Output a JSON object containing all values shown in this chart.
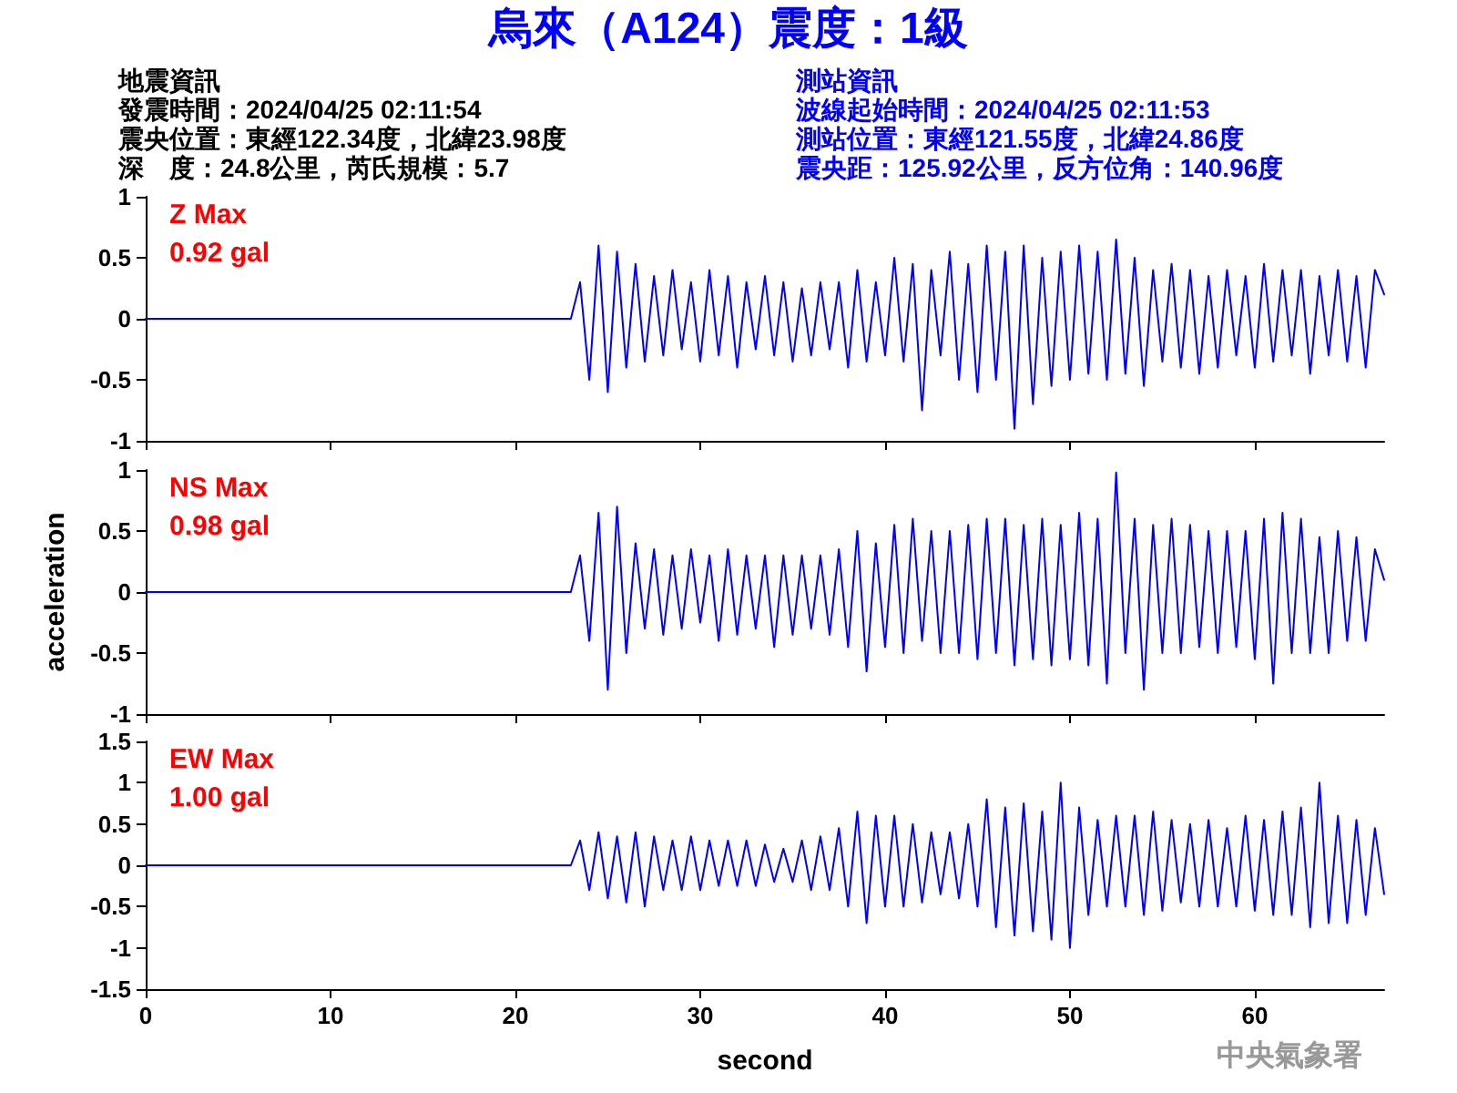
{
  "chart_data": [
    {
      "type": "line",
      "title": "烏來（A124）震度：1級",
      "annotations": [
        "地震資訊",
        "發震時間：2024/04/25 02:11:54",
        "震央位置：東經122.34度，北緯23.98度",
        "深　度：24.8公里，芮氏規模：5.7",
        "測站資訊",
        "波線起始時間：2024/04/25 02:11:53",
        "測站位置：東經121.55度，北緯24.86度",
        "震央距：125.92公里，反方位角：140.96度",
        "Z Max",
        "0.92 gal"
      ],
      "color": "#0000ff",
      "line_style": "solid",
      "marker": "none",
      "tick_labels": "y",
      "xlim": [
        0,
        67
      ],
      "xticks": [
        0,
        10,
        20,
        30,
        40,
        50,
        60
      ],
      "ylim": [
        -1,
        1
      ],
      "yticks": [
        -1,
        -0.5,
        0,
        0.5,
        1
      ],
      "x": [
        0,
        5,
        10,
        15,
        20,
        23,
        23.5,
        24,
        24.5,
        25,
        25.5,
        26,
        26.5,
        27,
        27.5,
        28,
        28.5,
        29,
        29.5,
        30,
        30.5,
        31,
        31.5,
        32,
        32.5,
        33,
        33.5,
        34,
        34.5,
        35,
        35.5,
        36,
        36.5,
        37,
        37.5,
        38,
        38.5,
        39,
        39.5,
        40,
        40.5,
        41,
        41.5,
        42,
        42.5,
        43,
        43.5,
        44,
        44.5,
        45,
        45.5,
        46,
        46.5,
        47,
        47.5,
        48,
        48.5,
        49,
        49.5,
        50,
        50.5,
        51,
        51.5,
        52,
        52.5,
        53,
        53.5,
        54,
        54.5,
        55,
        55.5,
        56,
        56.5,
        57,
        57.5,
        58,
        58.5,
        59,
        59.5,
        60,
        60.5,
        61,
        61.5,
        62,
        62.5,
        63,
        63.5,
        64,
        64.5,
        65,
        65.5,
        66,
        66.5,
        67
      ],
      "values": [
        0,
        0,
        0,
        0,
        0,
        0,
        0.3,
        -0.5,
        0.6,
        -0.6,
        0.55,
        -0.4,
        0.45,
        -0.35,
        0.35,
        -0.3,
        0.4,
        -0.25,
        0.3,
        -0.35,
        0.4,
        -0.3,
        0.35,
        -0.4,
        0.3,
        -0.25,
        0.35,
        -0.3,
        0.3,
        -0.35,
        0.25,
        -0.3,
        0.3,
        -0.25,
        0.3,
        -0.4,
        0.4,
        -0.35,
        0.3,
        -0.3,
        0.5,
        -0.35,
        0.45,
        -0.75,
        0.4,
        -0.3,
        0.55,
        -0.5,
        0.45,
        -0.6,
        0.6,
        -0.5,
        0.55,
        -0.9,
        0.6,
        -0.7,
        0.5,
        -0.55,
        0.55,
        -0.5,
        0.6,
        -0.45,
        0.55,
        -0.5,
        0.65,
        -0.45,
        0.5,
        -0.55,
        0.4,
        -0.35,
        0.45,
        -0.4,
        0.4,
        -0.45,
        0.35,
        -0.4,
        0.4,
        -0.3,
        0.35,
        -0.4,
        0.45,
        -0.35,
        0.4,
        -0.3,
        0.4,
        -0.45,
        0.35,
        -0.3,
        0.4,
        -0.35,
        0.35,
        -0.4,
        0.4,
        0.2
      ]
    },
    {
      "type": "line",
      "ylabel": "acceleration",
      "annotations": [
        "NS Max",
        "0.98 gal"
      ],
      "color": "#0000ff",
      "line_style": "solid",
      "marker": "none",
      "tick_labels": "y",
      "xlim": [
        0,
        67
      ],
      "xticks": [
        0,
        10,
        20,
        30,
        40,
        50,
        60
      ],
      "ylim": [
        -1,
        1
      ],
      "yticks": [
        -1,
        -0.5,
        0,
        0.5,
        1
      ],
      "x": [
        0,
        5,
        10,
        15,
        20,
        23,
        23.5,
        24,
        24.5,
        25,
        25.5,
        26,
        26.5,
        27,
        27.5,
        28,
        28.5,
        29,
        29.5,
        30,
        30.5,
        31,
        31.5,
        32,
        32.5,
        33,
        33.5,
        34,
        34.5,
        35,
        35.5,
        36,
        36.5,
        37,
        37.5,
        38,
        38.5,
        39,
        39.5,
        40,
        40.5,
        41,
        41.5,
        42,
        42.5,
        43,
        43.5,
        44,
        44.5,
        45,
        45.5,
        46,
        46.5,
        47,
        47.5,
        48,
        48.5,
        49,
        49.5,
        50,
        50.5,
        51,
        51.5,
        52,
        52.5,
        53,
        53.5,
        54,
        54.5,
        55,
        55.5,
        56,
        56.5,
        57,
        57.5,
        58,
        58.5,
        59,
        59.5,
        60,
        60.5,
        61,
        61.5,
        62,
        62.5,
        63,
        63.5,
        64,
        64.5,
        65,
        65.5,
        66,
        66.5,
        67
      ],
      "values": [
        0,
        0,
        0,
        0,
        0,
        0,
        0.3,
        -0.4,
        0.65,
        -0.8,
        0.7,
        -0.5,
        0.4,
        -0.3,
        0.35,
        -0.35,
        0.3,
        -0.3,
        0.35,
        -0.25,
        0.3,
        -0.4,
        0.35,
        -0.35,
        0.3,
        -0.3,
        0.3,
        -0.45,
        0.3,
        -0.35,
        0.3,
        -0.3,
        0.3,
        -0.35,
        0.35,
        -0.45,
        0.5,
        -0.65,
        0.4,
        -0.45,
        0.55,
        -0.5,
        0.6,
        -0.4,
        0.5,
        -0.5,
        0.5,
        -0.5,
        0.55,
        -0.55,
        0.6,
        -0.5,
        0.6,
        -0.6,
        0.55,
        -0.55,
        0.6,
        -0.6,
        0.55,
        -0.55,
        0.65,
        -0.6,
        0.6,
        -0.75,
        0.98,
        -0.5,
        0.6,
        -0.8,
        0.55,
        -0.5,
        0.6,
        -0.5,
        0.55,
        -0.45,
        0.5,
        -0.5,
        0.5,
        -0.45,
        0.5,
        -0.55,
        0.6,
        -0.75,
        0.65,
        -0.5,
        0.6,
        -0.5,
        0.45,
        -0.5,
        0.5,
        -0.4,
        0.45,
        -0.4,
        0.35,
        0.1
      ]
    },
    {
      "type": "line",
      "xlabel": "second",
      "annotations": [
        "EW Max",
        "1.00 gal",
        "中央氣象署"
      ],
      "color": "#0000ff",
      "line_style": "solid",
      "marker": "none",
      "xlim": [
        0,
        67
      ],
      "xticks": [
        0,
        10,
        20,
        30,
        40,
        50,
        60
      ],
      "ylim": [
        -1.5,
        1.5
      ],
      "yticks": [
        -1.5,
        -1,
        -0.5,
        0,
        0.5,
        1,
        1.5
      ],
      "x": [
        0,
        5,
        10,
        15,
        20,
        23,
        23.5,
        24,
        24.5,
        25,
        25.5,
        26,
        26.5,
        27,
        27.5,
        28,
        28.5,
        29,
        29.5,
        30,
        30.5,
        31,
        31.5,
        32,
        32.5,
        33,
        33.5,
        34,
        34.5,
        35,
        35.5,
        36,
        36.5,
        37,
        37.5,
        38,
        38.5,
        39,
        39.5,
        40,
        40.5,
        41,
        41.5,
        42,
        42.5,
        43,
        43.5,
        44,
        44.5,
        45,
        45.5,
        46,
        46.5,
        47,
        47.5,
        48,
        48.5,
        49,
        49.5,
        50,
        50.5,
        51,
        51.5,
        52,
        52.5,
        53,
        53.5,
        54,
        54.5,
        55,
        55.5,
        56,
        56.5,
        57,
        57.5,
        58,
        58.5,
        59,
        59.5,
        60,
        60.5,
        61,
        61.5,
        62,
        62.5,
        63,
        63.5,
        64,
        64.5,
        65,
        65.5,
        66,
        66.5,
        67
      ],
      "values": [
        0,
        0,
        0,
        0,
        0,
        0,
        0.3,
        -0.3,
        0.4,
        -0.4,
        0.35,
        -0.45,
        0.4,
        -0.5,
        0.35,
        -0.3,
        0.3,
        -0.3,
        0.35,
        -0.3,
        0.3,
        -0.25,
        0.3,
        -0.25,
        0.3,
        -0.25,
        0.25,
        -0.2,
        0.2,
        -0.2,
        0.3,
        -0.3,
        0.35,
        -0.3,
        0.45,
        -0.5,
        0.65,
        -0.7,
        0.6,
        -0.5,
        0.6,
        -0.5,
        0.5,
        -0.45,
        0.4,
        -0.35,
        0.4,
        -0.4,
        0.5,
        -0.5,
        0.8,
        -0.75,
        0.7,
        -0.85,
        0.75,
        -0.8,
        0.65,
        -0.9,
        1.0,
        -1.0,
        0.7,
        -0.6,
        0.55,
        -0.5,
        0.6,
        -0.5,
        0.6,
        -0.6,
        0.65,
        -0.55,
        0.55,
        -0.45,
        0.5,
        -0.5,
        0.55,
        -0.5,
        0.45,
        -0.5,
        0.6,
        -0.55,
        0.55,
        -0.6,
        0.65,
        -0.6,
        0.7,
        -0.75,
        1.0,
        -0.7,
        0.6,
        -0.7,
        0.55,
        -0.6,
        0.45,
        -0.35
      ]
    }
  ]
}
